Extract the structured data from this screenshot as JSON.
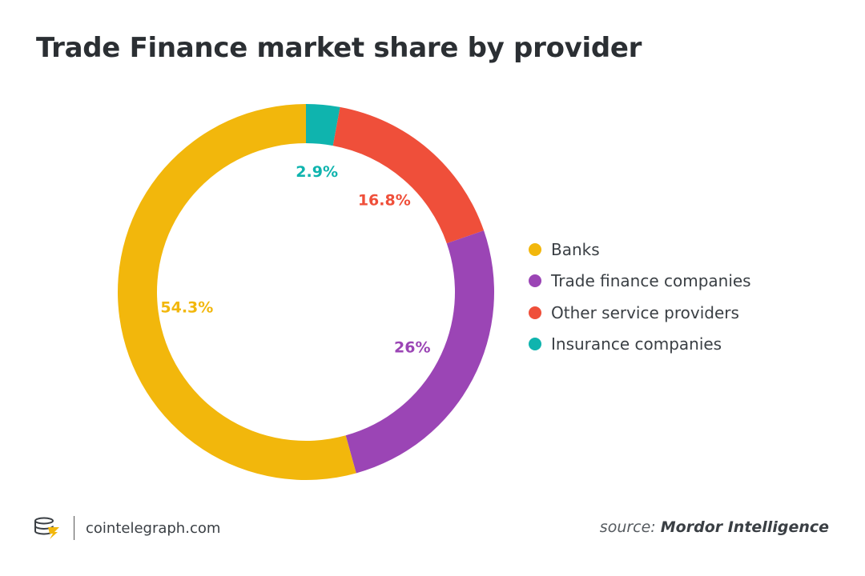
{
  "title": "Trade Finance market share by provider",
  "chart_data": {
    "type": "pie",
    "style": "donut",
    "categories": [
      "Banks",
      "Trade finance companies",
      "Other service providers",
      "Insurance companies"
    ],
    "values": [
      54.3,
      26,
      16.8,
      2.9
    ],
    "value_labels": [
      "54.3%",
      "26%",
      "16.8%",
      "2.9%"
    ],
    "colors": [
      "#f2b70c",
      "#9b45b5",
      "#ef4f3a",
      "#0fb4ae"
    ],
    "legend_position": "right",
    "slice_order": [
      "Insurance companies",
      "Other service providers",
      "Trade finance companies",
      "Banks"
    ]
  },
  "footer": {
    "brand": "cointelegraph.com",
    "source_prefix": "source:",
    "source_name": "Mordor Intelligence"
  },
  "icons": {
    "brand_logo": "cointelegraph-logo-icon"
  }
}
